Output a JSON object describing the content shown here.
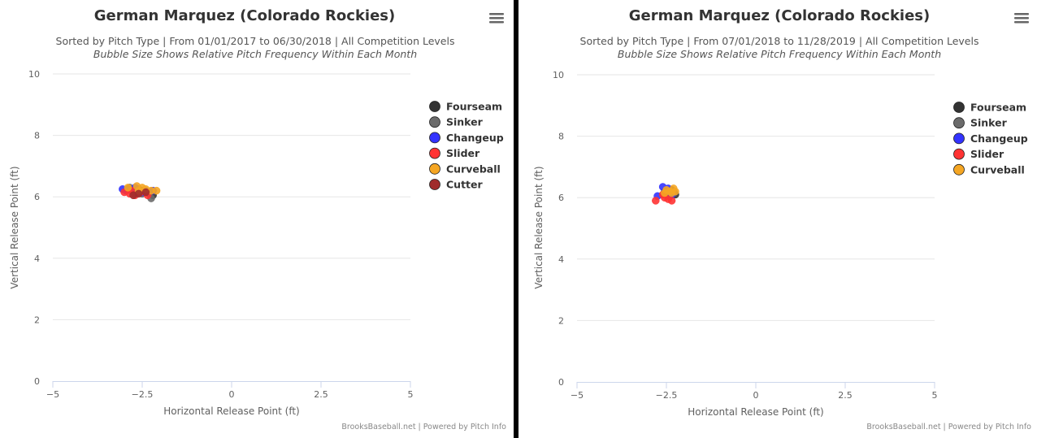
{
  "chart_data": [
    {
      "type": "scatter",
      "title": "German Marquez (Colorado Rockies)",
      "subtitle": "Sorted by Pitch Type | From 01/01/2017 to 06/30/2018 | All Competition Levels",
      "subtitle2": "Bubble Size Shows Relative Pitch Frequency Within Each Month",
      "xlabel": "Horizontal Release Point (ft)",
      "ylabel": "Vertical Release Point (ft)",
      "xlim": [
        -5,
        5
      ],
      "ylim": [
        0,
        10
      ],
      "xticks": [
        -5,
        -2.5,
        0,
        2.5,
        5
      ],
      "xtick_labels": [
        "−5",
        "−2.5",
        "0",
        "2.5",
        "5"
      ],
      "yticks": [
        0,
        2,
        4,
        6,
        8,
        10
      ],
      "ytick_labels": [
        "0",
        "2",
        "4",
        "6",
        "8",
        "10"
      ],
      "grid": true,
      "legend_position": "right",
      "credit": "BrooksBaseball.net | Powered by Pitch Info",
      "series": [
        {
          "name": "Fourseam",
          "color": "#333333",
          "points": [
            [
              -2.9,
              6.25
            ],
            [
              -2.8,
              6.2
            ],
            [
              -2.6,
              6.15
            ],
            [
              -2.5,
              6.2
            ],
            [
              -2.3,
              6.1
            ],
            [
              -2.2,
              6.05
            ],
            [
              -2.7,
              6.1
            ]
          ]
        },
        {
          "name": "Sinker",
          "color": "#6b6b6b",
          "points": [
            [
              -2.85,
              6.3
            ],
            [
              -2.6,
              6.25
            ],
            [
              -2.3,
              6.15
            ],
            [
              -2.25,
              5.95
            ],
            [
              -2.5,
              6.1
            ]
          ]
        },
        {
          "name": "Changeup",
          "color": "#3333ff",
          "points": [
            [
              -3.05,
              6.25
            ],
            [
              -2.95,
              6.2
            ],
            [
              -2.7,
              6.3
            ],
            [
              -2.5,
              6.15
            ],
            [
              -2.2,
              6.2
            ],
            [
              -2.4,
              6.2
            ]
          ]
        },
        {
          "name": "Slider",
          "color": "#ff3333",
          "points": [
            [
              -3.0,
              6.15
            ],
            [
              -2.85,
              6.1
            ],
            [
              -2.7,
              6.05
            ],
            [
              -2.55,
              6.15
            ],
            [
              -2.35,
              6.05
            ],
            [
              -2.8,
              6.2
            ]
          ]
        },
        {
          "name": "Curveball",
          "color": "#f5a623",
          "points": [
            [
              -2.9,
              6.3
            ],
            [
              -2.65,
              6.35
            ],
            [
              -2.5,
              6.3
            ],
            [
              -2.4,
              6.25
            ],
            [
              -2.25,
              6.2
            ],
            [
              -2.1,
              6.2
            ],
            [
              -2.6,
              6.2
            ]
          ]
        },
        {
          "name": "Cutter",
          "color": "#a02c2c",
          "points": [
            [
              -2.75,
              6.05
            ],
            [
              -2.6,
              6.1
            ],
            [
              -2.4,
              6.15
            ]
          ]
        }
      ]
    },
    {
      "type": "scatter",
      "title": "German Marquez (Colorado Rockies)",
      "subtitle": "Sorted by Pitch Type | From 07/01/2018 to 11/28/2019 | All Competition Levels",
      "subtitle2": "Bubble Size Shows Relative Pitch Frequency Within Each Month",
      "xlabel": "Horizontal Release Point (ft)",
      "ylabel": "Vertical Release Point (ft)",
      "xlim": [
        -5,
        5
      ],
      "ylim": [
        0,
        10
      ],
      "xticks": [
        -5,
        -2.5,
        0,
        2.5,
        5
      ],
      "xtick_labels": [
        "−5",
        "−2.5",
        "0",
        "2.5",
        "5"
      ],
      "yticks": [
        0,
        2,
        4,
        6,
        8,
        10
      ],
      "ytick_labels": [
        "0",
        "2",
        "4",
        "6",
        "8",
        "10"
      ],
      "grid": true,
      "legend_position": "right",
      "credit": "BrooksBaseball.net | Powered by Pitch Info",
      "series": [
        {
          "name": "Fourseam",
          "color": "#333333",
          "points": [
            [
              -2.45,
              6.15
            ],
            [
              -2.3,
              6.2
            ],
            [
              -2.25,
              6.1
            ],
            [
              -2.35,
              6.25
            ],
            [
              -2.5,
              6.1
            ]
          ]
        },
        {
          "name": "Sinker",
          "color": "#6b6b6b",
          "points": [
            [
              -2.4,
              6.05
            ],
            [
              -2.3,
              6.15
            ],
            [
              -2.55,
              6.2
            ]
          ]
        },
        {
          "name": "Changeup",
          "color": "#3333ff",
          "points": [
            [
              -2.6,
              6.35
            ],
            [
              -2.75,
              6.05
            ],
            [
              -2.45,
              6.3
            ],
            [
              -2.35,
              6.1
            ]
          ]
        },
        {
          "name": "Slider",
          "color": "#ff3333",
          "points": [
            [
              -2.8,
              5.9
            ],
            [
              -2.55,
              6.0
            ],
            [
              -2.45,
              5.95
            ],
            [
              -2.35,
              5.9
            ],
            [
              -2.6,
              6.1
            ]
          ]
        },
        {
          "name": "Curveball",
          "color": "#f5a623",
          "points": [
            [
              -2.55,
              6.15
            ],
            [
              -2.4,
              6.2
            ],
            [
              -2.3,
              6.3
            ],
            [
              -2.25,
              6.2
            ],
            [
              -2.5,
              6.25
            ],
            [
              -2.35,
              6.15
            ]
          ]
        }
      ]
    }
  ]
}
